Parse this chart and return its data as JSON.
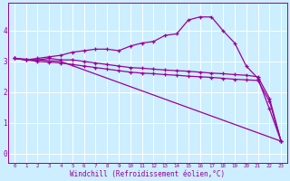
{
  "background_color": "#cceeff",
  "grid_color": "#aaddcc",
  "line_color": "#990099",
  "xlabel": "Windchill (Refroidissement éolien,°C)",
  "xlim": [
    -0.5,
    23.5
  ],
  "ylim": [
    -0.3,
    4.9
  ],
  "xticks": [
    0,
    1,
    2,
    3,
    4,
    5,
    6,
    7,
    8,
    9,
    10,
    11,
    12,
    13,
    14,
    15,
    16,
    17,
    18,
    19,
    20,
    21,
    22,
    23
  ],
  "yticks": [
    0,
    1,
    2,
    3,
    4
  ],
  "series": [
    {
      "x": [
        0,
        1,
        2,
        3,
        4,
        5,
        6,
        7,
        8,
        9,
        10,
        11,
        12,
        13,
        14,
        15,
        16,
        17,
        18,
        19,
        20,
        21,
        22,
        23
      ],
      "y": [
        3.1,
        3.05,
        3.1,
        3.15,
        3.2,
        3.3,
        3.35,
        3.4,
        3.4,
        3.35,
        3.5,
        3.6,
        3.65,
        3.85,
        3.9,
        4.35,
        4.45,
        4.45,
        4.0,
        3.6,
        2.85,
        2.45,
        1.45,
        0.4
      ]
    },
    {
      "x": [
        0,
        1,
        2,
        3,
        4,
        5,
        6,
        7,
        8,
        9,
        10,
        11,
        12,
        13,
        14,
        15,
        16,
        17,
        18,
        19,
        20,
        21,
        22,
        23
      ],
      "y": [
        3.1,
        3.05,
        3.05,
        3.1,
        3.05,
        3.05,
        3.0,
        2.95,
        2.9,
        2.85,
        2.8,
        2.78,
        2.75,
        2.72,
        2.7,
        2.68,
        2.65,
        2.62,
        2.6,
        2.57,
        2.55,
        2.5,
        1.8,
        0.4
      ]
    },
    {
      "x": [
        0,
        1,
        2,
        3,
        4,
        5,
        6,
        7,
        8,
        9,
        10,
        11,
        12,
        13,
        14,
        15,
        16,
        17,
        18,
        19,
        20,
        21,
        22,
        23
      ],
      "y": [
        3.1,
        3.05,
        3.0,
        2.98,
        2.95,
        2.9,
        2.85,
        2.8,
        2.75,
        2.7,
        2.65,
        2.62,
        2.6,
        2.57,
        2.55,
        2.52,
        2.5,
        2.48,
        2.45,
        2.42,
        2.4,
        2.38,
        1.7,
        0.4
      ]
    },
    {
      "x": [
        0,
        4,
        23
      ],
      "y": [
        3.1,
        3.0,
        0.4
      ]
    }
  ]
}
